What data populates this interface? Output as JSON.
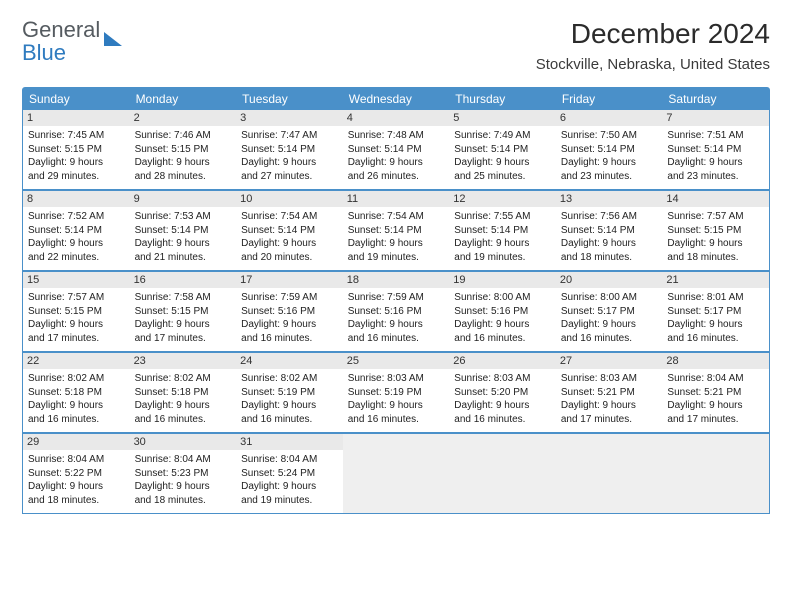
{
  "logo": {
    "line1": "General",
    "line2": "Blue"
  },
  "title": "December 2024",
  "location": "Stockville, Nebraska, United States",
  "colors": {
    "header_bg": "#4a90c9",
    "header_text": "#ffffff",
    "daynum_bg": "#e9e9e9",
    "border": "#4a90c9",
    "empty_bg": "#efefef",
    "logo_blue": "#2f7bbf",
    "logo_gray": "#555b60"
  },
  "weekdays": [
    "Sunday",
    "Monday",
    "Tuesday",
    "Wednesday",
    "Thursday",
    "Friday",
    "Saturday"
  ],
  "weeks": [
    [
      {
        "n": "1",
        "sr": "Sunrise: 7:45 AM",
        "ss": "Sunset: 5:15 PM",
        "d1": "Daylight: 9 hours",
        "d2": "and 29 minutes."
      },
      {
        "n": "2",
        "sr": "Sunrise: 7:46 AM",
        "ss": "Sunset: 5:15 PM",
        "d1": "Daylight: 9 hours",
        "d2": "and 28 minutes."
      },
      {
        "n": "3",
        "sr": "Sunrise: 7:47 AM",
        "ss": "Sunset: 5:14 PM",
        "d1": "Daylight: 9 hours",
        "d2": "and 27 minutes."
      },
      {
        "n": "4",
        "sr": "Sunrise: 7:48 AM",
        "ss": "Sunset: 5:14 PM",
        "d1": "Daylight: 9 hours",
        "d2": "and 26 minutes."
      },
      {
        "n": "5",
        "sr": "Sunrise: 7:49 AM",
        "ss": "Sunset: 5:14 PM",
        "d1": "Daylight: 9 hours",
        "d2": "and 25 minutes."
      },
      {
        "n": "6",
        "sr": "Sunrise: 7:50 AM",
        "ss": "Sunset: 5:14 PM",
        "d1": "Daylight: 9 hours",
        "d2": "and 23 minutes."
      },
      {
        "n": "7",
        "sr": "Sunrise: 7:51 AM",
        "ss": "Sunset: 5:14 PM",
        "d1": "Daylight: 9 hours",
        "d2": "and 23 minutes."
      }
    ],
    [
      {
        "n": "8",
        "sr": "Sunrise: 7:52 AM",
        "ss": "Sunset: 5:14 PM",
        "d1": "Daylight: 9 hours",
        "d2": "and 22 minutes."
      },
      {
        "n": "9",
        "sr": "Sunrise: 7:53 AM",
        "ss": "Sunset: 5:14 PM",
        "d1": "Daylight: 9 hours",
        "d2": "and 21 minutes."
      },
      {
        "n": "10",
        "sr": "Sunrise: 7:54 AM",
        "ss": "Sunset: 5:14 PM",
        "d1": "Daylight: 9 hours",
        "d2": "and 20 minutes."
      },
      {
        "n": "11",
        "sr": "Sunrise: 7:54 AM",
        "ss": "Sunset: 5:14 PM",
        "d1": "Daylight: 9 hours",
        "d2": "and 19 minutes."
      },
      {
        "n": "12",
        "sr": "Sunrise: 7:55 AM",
        "ss": "Sunset: 5:14 PM",
        "d1": "Daylight: 9 hours",
        "d2": "and 19 minutes."
      },
      {
        "n": "13",
        "sr": "Sunrise: 7:56 AM",
        "ss": "Sunset: 5:14 PM",
        "d1": "Daylight: 9 hours",
        "d2": "and 18 minutes."
      },
      {
        "n": "14",
        "sr": "Sunrise: 7:57 AM",
        "ss": "Sunset: 5:15 PM",
        "d1": "Daylight: 9 hours",
        "d2": "and 18 minutes."
      }
    ],
    [
      {
        "n": "15",
        "sr": "Sunrise: 7:57 AM",
        "ss": "Sunset: 5:15 PM",
        "d1": "Daylight: 9 hours",
        "d2": "and 17 minutes."
      },
      {
        "n": "16",
        "sr": "Sunrise: 7:58 AM",
        "ss": "Sunset: 5:15 PM",
        "d1": "Daylight: 9 hours",
        "d2": "and 17 minutes."
      },
      {
        "n": "17",
        "sr": "Sunrise: 7:59 AM",
        "ss": "Sunset: 5:16 PM",
        "d1": "Daylight: 9 hours",
        "d2": "and 16 minutes."
      },
      {
        "n": "18",
        "sr": "Sunrise: 7:59 AM",
        "ss": "Sunset: 5:16 PM",
        "d1": "Daylight: 9 hours",
        "d2": "and 16 minutes."
      },
      {
        "n": "19",
        "sr": "Sunrise: 8:00 AM",
        "ss": "Sunset: 5:16 PM",
        "d1": "Daylight: 9 hours",
        "d2": "and 16 minutes."
      },
      {
        "n": "20",
        "sr": "Sunrise: 8:00 AM",
        "ss": "Sunset: 5:17 PM",
        "d1": "Daylight: 9 hours",
        "d2": "and 16 minutes."
      },
      {
        "n": "21",
        "sr": "Sunrise: 8:01 AM",
        "ss": "Sunset: 5:17 PM",
        "d1": "Daylight: 9 hours",
        "d2": "and 16 minutes."
      }
    ],
    [
      {
        "n": "22",
        "sr": "Sunrise: 8:02 AM",
        "ss": "Sunset: 5:18 PM",
        "d1": "Daylight: 9 hours",
        "d2": "and 16 minutes."
      },
      {
        "n": "23",
        "sr": "Sunrise: 8:02 AM",
        "ss": "Sunset: 5:18 PM",
        "d1": "Daylight: 9 hours",
        "d2": "and 16 minutes."
      },
      {
        "n": "24",
        "sr": "Sunrise: 8:02 AM",
        "ss": "Sunset: 5:19 PM",
        "d1": "Daylight: 9 hours",
        "d2": "and 16 minutes."
      },
      {
        "n": "25",
        "sr": "Sunrise: 8:03 AM",
        "ss": "Sunset: 5:19 PM",
        "d1": "Daylight: 9 hours",
        "d2": "and 16 minutes."
      },
      {
        "n": "26",
        "sr": "Sunrise: 8:03 AM",
        "ss": "Sunset: 5:20 PM",
        "d1": "Daylight: 9 hours",
        "d2": "and 16 minutes."
      },
      {
        "n": "27",
        "sr": "Sunrise: 8:03 AM",
        "ss": "Sunset: 5:21 PM",
        "d1": "Daylight: 9 hours",
        "d2": "and 17 minutes."
      },
      {
        "n": "28",
        "sr": "Sunrise: 8:04 AM",
        "ss": "Sunset: 5:21 PM",
        "d1": "Daylight: 9 hours",
        "d2": "and 17 minutes."
      }
    ],
    [
      {
        "n": "29",
        "sr": "Sunrise: 8:04 AM",
        "ss": "Sunset: 5:22 PM",
        "d1": "Daylight: 9 hours",
        "d2": "and 18 minutes."
      },
      {
        "n": "30",
        "sr": "Sunrise: 8:04 AM",
        "ss": "Sunset: 5:23 PM",
        "d1": "Daylight: 9 hours",
        "d2": "and 18 minutes."
      },
      {
        "n": "31",
        "sr": "Sunrise: 8:04 AM",
        "ss": "Sunset: 5:24 PM",
        "d1": "Daylight: 9 hours",
        "d2": "and 19 minutes."
      },
      null,
      null,
      null,
      null
    ]
  ]
}
